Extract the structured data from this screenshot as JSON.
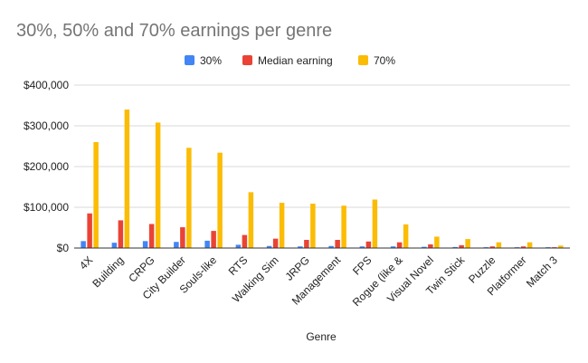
{
  "chart_data": {
    "type": "bar",
    "title": "30%, 50% and 70% earnings per genre",
    "xlabel": "Genre",
    "ylabel": "",
    "ylim": [
      0,
      400000
    ],
    "yticks": [
      0,
      100000,
      200000,
      300000,
      400000
    ],
    "ytick_labels": [
      "$0",
      "$100,000",
      "$200,000",
      "$300,000",
      "$400,000"
    ],
    "legend_position": "top",
    "grid": true,
    "categories": [
      "4X",
      "Building",
      "CRPG",
      "City Builder",
      "Souls-like",
      "RTS",
      "Walking Sim",
      "JRPG",
      "Management",
      "FPS",
      "Rogue (like &",
      "Visual Novel",
      "Twin Stick",
      "Puzzle",
      "Platformer",
      "Match 3"
    ],
    "series": [
      {
        "name": "30%",
        "color": "#4285f4",
        "values": [
          17000,
          13000,
          17000,
          15000,
          18000,
          8000,
          5000,
          4000,
          5000,
          4000,
          4000,
          3000,
          2500,
          2000,
          2000,
          2000
        ]
      },
      {
        "name": "Median earning",
        "color": "#ea4335",
        "values": [
          85000,
          68000,
          59000,
          51000,
          42000,
          32000,
          23000,
          20000,
          20000,
          16000,
          14000,
          9000,
          7000,
          4000,
          4000,
          2000
        ]
      },
      {
        "name": "70%",
        "color": "#fbbc04",
        "values": [
          260000,
          340000,
          308000,
          246000,
          234000,
          137000,
          111000,
          109000,
          104000,
          119000,
          58000,
          28000,
          22000,
          14000,
          14000,
          6000
        ]
      }
    ]
  }
}
